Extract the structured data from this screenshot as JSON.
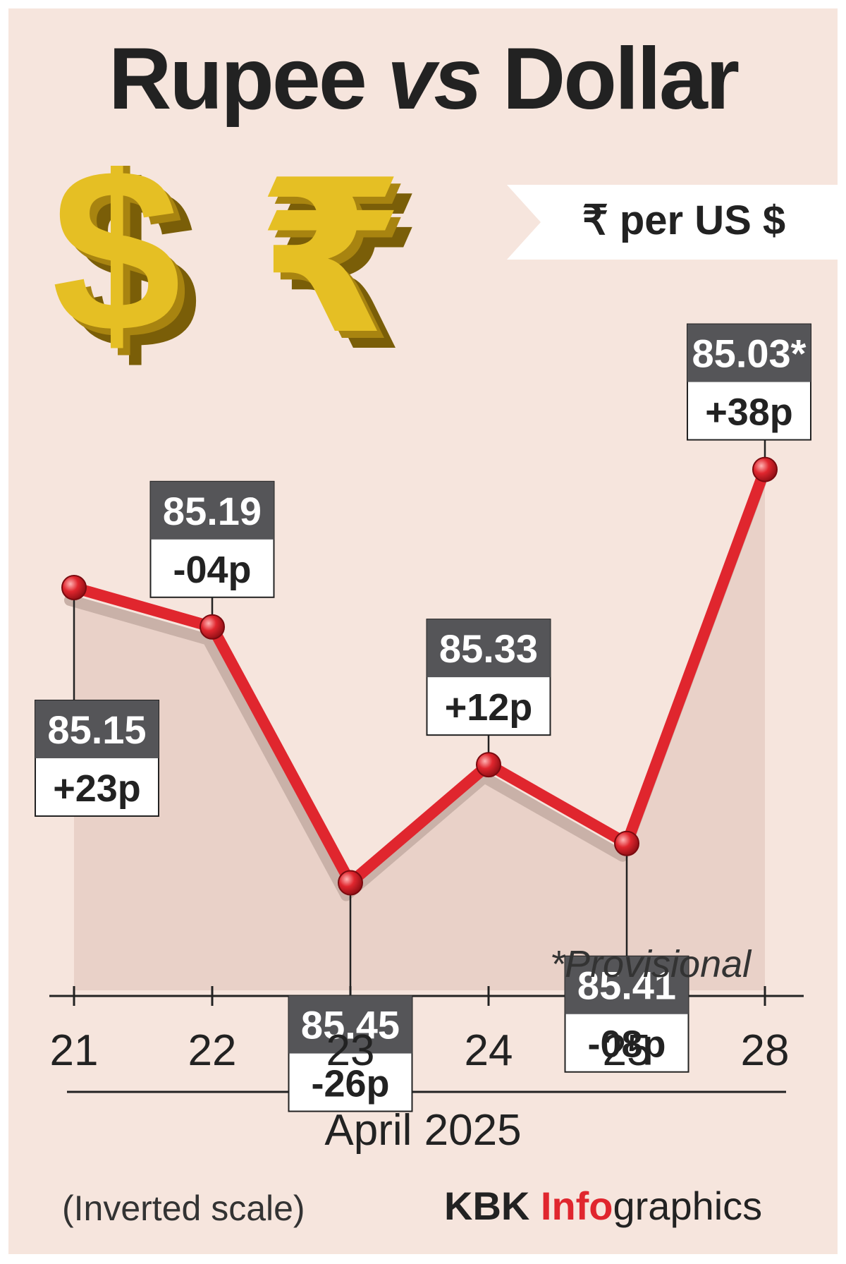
{
  "title": {
    "part1": "Rupee",
    "part2": "vs",
    "part3": "Dollar"
  },
  "unit_label": "₹  per US $",
  "footnote": "*Provisional",
  "scale_note": "(Inverted scale)",
  "credit": {
    "part1": "KBK ",
    "part2": "Info",
    "part3": "graphics"
  },
  "colors": {
    "line": "#e0262e",
    "value_box": "#555558",
    "area_fill": "#e9d1c8",
    "background": "#f6e5dd",
    "gold": "#e5bf24"
  },
  "icons": [
    "dollar-sign-icon",
    "rupee-sign-icon"
  ],
  "chart_data": {
    "type": "line",
    "x": [
      "21",
      "22",
      "23",
      "24",
      "25",
      "28"
    ],
    "xlabel": "April 2025",
    "ylabel": "",
    "y_inverted": true,
    "ylim": [
      85.56,
      84.94
    ],
    "grid": false,
    "series": [
      {
        "values": [
          85.15,
          85.19,
          85.45,
          85.33,
          85.41,
          85.03
        ]
      }
    ],
    "value_labels": [
      "85.15",
      "85.19",
      "85.45",
      "85.33",
      "85.41",
      "85.03*"
    ],
    "change_labels": [
      "+23p",
      "-04p",
      "-26p",
      "+12p",
      "-08p",
      "+38p"
    ],
    "label_positions": [
      "below",
      "above",
      "below",
      "above",
      "below",
      "above"
    ]
  }
}
